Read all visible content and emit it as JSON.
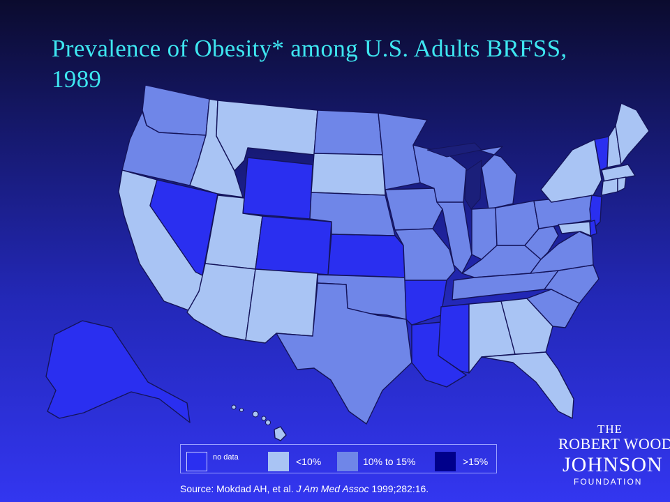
{
  "title": "Prevalence of Obesity* among U.S. Adults BRFSS, 1989",
  "legend": {
    "items": [
      {
        "label": "no data",
        "color": "#2a2ff0"
      },
      {
        "label": "<10%",
        "color": "#a9c4f4"
      },
      {
        "label": "10% to 15%",
        "color": "#6f86e8"
      },
      {
        "label": ">15%",
        "color": "#00008b"
      }
    ]
  },
  "source": {
    "prefix": "Source: Mokdad AH, et al.",
    "journal": "J Am Med Assoc",
    "suffix": "1999;282:16."
  },
  "logo": {
    "line1": "THE",
    "line2": "ROBERT WOOD",
    "line3": "JOHNSON",
    "line4": "FOUNDATION"
  },
  "colors": {
    "no_data": "#2a2ff0",
    "under_10": "#a9c4f4",
    "10_to_15": "#6f86e8",
    "over_15": "#00008b",
    "title": "#3ee6f0"
  },
  "map": {
    "states": [
      {
        "name": "WA",
        "category": "10_to_15"
      },
      {
        "name": "OR",
        "category": "10_to_15"
      },
      {
        "name": "CA",
        "category": "under_10"
      },
      {
        "name": "NV",
        "category": "no_data"
      },
      {
        "name": "ID",
        "category": "under_10"
      },
      {
        "name": "MT",
        "category": "under_10"
      },
      {
        "name": "WY",
        "category": "no_data"
      },
      {
        "name": "UT",
        "category": "under_10"
      },
      {
        "name": "AZ",
        "category": "under_10"
      },
      {
        "name": "CO",
        "category": "no_data"
      },
      {
        "name": "NM",
        "category": "under_10"
      },
      {
        "name": "ND",
        "category": "10_to_15"
      },
      {
        "name": "SD",
        "category": "under_10"
      },
      {
        "name": "NE",
        "category": "10_to_15"
      },
      {
        "name": "KS",
        "category": "no_data"
      },
      {
        "name": "OK",
        "category": "10_to_15"
      },
      {
        "name": "TX",
        "category": "10_to_15"
      },
      {
        "name": "MN",
        "category": "10_to_15"
      },
      {
        "name": "IA",
        "category": "10_to_15"
      },
      {
        "name": "MO",
        "category": "10_to_15"
      },
      {
        "name": "AR",
        "category": "no_data"
      },
      {
        "name": "LA",
        "category": "no_data"
      },
      {
        "name": "WI",
        "category": "10_to_15"
      },
      {
        "name": "IL",
        "category": "10_to_15"
      },
      {
        "name": "MI",
        "category": "10_to_15"
      },
      {
        "name": "IN",
        "category": "10_to_15"
      },
      {
        "name": "OH",
        "category": "10_to_15"
      },
      {
        "name": "KY",
        "category": "10_to_15"
      },
      {
        "name": "TN",
        "category": "10_to_15"
      },
      {
        "name": "MS",
        "category": "no_data"
      },
      {
        "name": "AL",
        "category": "under_10"
      },
      {
        "name": "GA",
        "category": "under_10"
      },
      {
        "name": "FL",
        "category": "under_10"
      },
      {
        "name": "SC",
        "category": "10_to_15"
      },
      {
        "name": "NC",
        "category": "10_to_15"
      },
      {
        "name": "VA",
        "category": "10_to_15"
      },
      {
        "name": "WV",
        "category": "10_to_15"
      },
      {
        "name": "PA",
        "category": "10_to_15"
      },
      {
        "name": "NY",
        "category": "under_10"
      },
      {
        "name": "VT",
        "category": "no_data"
      },
      {
        "name": "NH",
        "category": "under_10"
      },
      {
        "name": "ME",
        "category": "under_10"
      },
      {
        "name": "MA",
        "category": "under_10"
      },
      {
        "name": "CT",
        "category": "under_10"
      },
      {
        "name": "RI",
        "category": "under_10"
      },
      {
        "name": "NJ",
        "category": "no_data"
      },
      {
        "name": "DE",
        "category": "no_data"
      },
      {
        "name": "MD",
        "category": "under_10"
      },
      {
        "name": "AK",
        "category": "no_data"
      },
      {
        "name": "HI",
        "category": "under_10"
      }
    ]
  }
}
